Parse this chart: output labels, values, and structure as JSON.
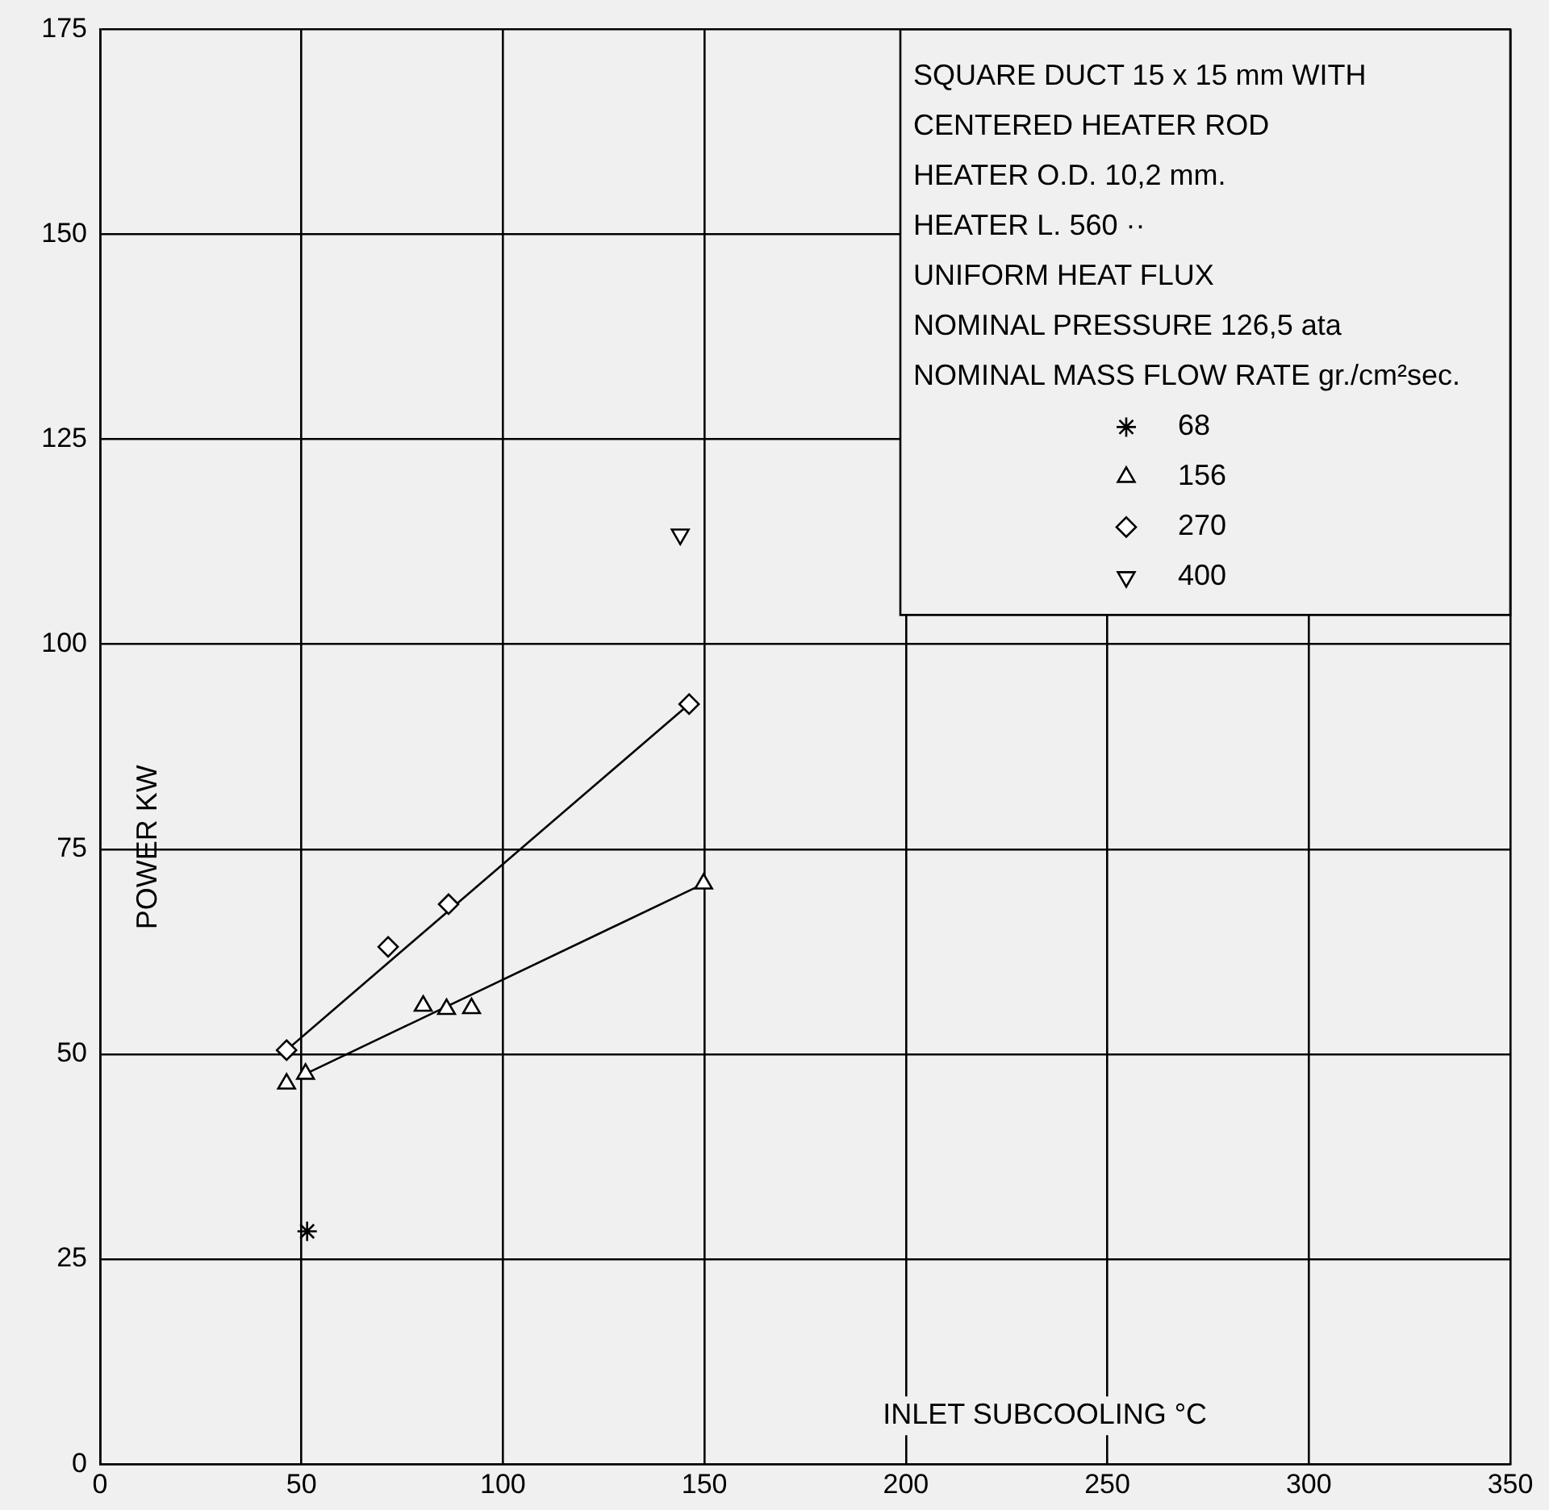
{
  "chart_data": {
    "type": "scatter",
    "xlabel": "INLET SUBCOOLING °C",
    "ylabel": "POWER KW",
    "legend_title": "SQUARE DUCT 15 x 15 mm WITH\nCENTERED HEATER ROD\nHEATER O.D. 10,2 mm.\nHEATER L. 560 ··\nUNIFORM HEAT FLUX\nNOMINAL PRESSURE 126,5 ata\nNOMINAL MASS FLOW RATE gr./cm²sec.",
    "xlim": [
      0,
      350
    ],
    "xticks": [
      0,
      50,
      100,
      150,
      200,
      250,
      300,
      350
    ],
    "ylim": [
      0,
      175
    ],
    "yticks": [
      0,
      25,
      50,
      75,
      100,
      125,
      150,
      175
    ],
    "grid": true,
    "legend": "top right",
    "series": [
      {
        "name": "68",
        "color": "#000000",
        "marker": "cross",
        "x": [
          51.4
        ],
        "values": [
          28.4
        ]
      },
      {
        "name": "156",
        "color": "#000000",
        "marker": "triangle",
        "x": [
          46.3,
          51,
          80.2,
          86,
          92.2,
          149.8
        ],
        "values": [
          46.4,
          47.6,
          55.9,
          55.5,
          55.6,
          70.8
        ]
      },
      {
        "name": "270",
        "color": "#000000",
        "marker": "diamond",
        "x": [
          46.3,
          71.5,
          86.5,
          146.2
        ],
        "values": [
          50.5,
          63.1,
          68.3,
          92.7
        ]
      },
      {
        "name": "400",
        "color": "#000000",
        "marker": "triangle-down",
        "x": [
          144
        ],
        "values": [
          113.4
        ]
      },
      {
        "type": "line",
        "color": "#000000",
        "marker": "none",
        "line_style": "solid",
        "x": [
          51,
          149.8
        ],
        "values": [
          47.6,
          70.8
        ]
      },
      {
        "type": "line",
        "color": "#000000",
        "marker": "none",
        "line_style": "solid",
        "x": [
          46.3,
          146.2
        ],
        "values": [
          50.5,
          92.7
        ]
      }
    ]
  }
}
